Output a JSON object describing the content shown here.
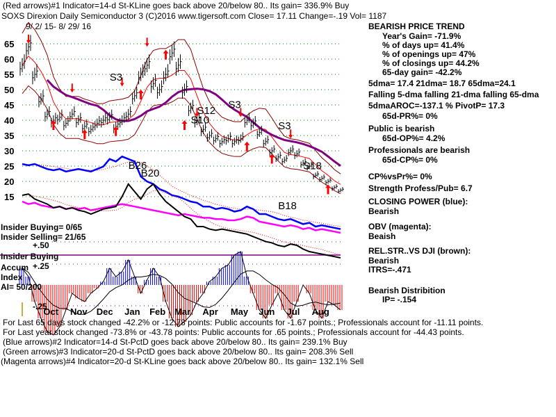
{
  "header": {
    "line1": "(Red arrows)#1 Indicator=14-d St-KLine goes back above 20/below 80.. Its gain= 336.9% Buy",
    "line2": "SOXS   Direxion Daily Semiconductor 3  (C)2016 www.tigersoft.com     Close=  17.11  Change=-.19 Vol= 1187",
    "date_range": "9/ 2/ 15- 8/ 29/ 16"
  },
  "right_panel": {
    "trend": "BEARISH PRICE TREND",
    "years_gain": "Year's Gain= -71.9%",
    "days_up": "% of days up= 41.4%",
    "openings_up": "% of openings up= 47%",
    "closings_up": "% of closings up= 44.2%",
    "gain_65d": "65-day gain= -42.2%",
    "dma": "5dma= 17.4 21dma= 18.7 65dma=24.1",
    "falling": "Falling 5-dma  falling 21-dma  falling 65-dma",
    "aroc": "5dmaAROC=-137.1 %  PivotP= 17.3",
    "pr": "65d-PR%= 0%",
    "public": "Public is bearish",
    "op": "65d-OP%= 4.2%",
    "pros": "Professionals are bearish",
    "cp": "65d-CP%= 0%",
    "cpvspr": "CP%vsPr%=  0%",
    "strength": "Strength Profess/Pub= 6.7",
    "closing_power": "CLOSING POWER (blue):",
    "closing_power_val": "Bearish",
    "obv": "OBV (magenta):",
    "obv_val": "Beaish",
    "relstr": "REL.STR..VS DJI (brown):",
    "relstr_val": "Bearish",
    "itrs": "ITRS=-.471",
    "distribution": "Bearish Distribition",
    "ip": "IP= -.154"
  },
  "left_labels": {
    "insider_buying": "Insider Buying= 0/65",
    "insider_selling": "Insider Selling= 21/65",
    "plus50": "+.50",
    "insider_buying2": "Insider Buying",
    "accum": "Accum",
    "plus25": "+.25",
    "index": "Index",
    "ai": "AI= 50/200",
    "minus25": "-.25"
  },
  "footer": [
    "For Last 65 days stock changed -42.2% or -12.78 points:  Public accounts for -1.67 points.;  Professionals account for -11.11 points.",
    "For Last year stock changed -73.8% or -43.78 points:  Public accounts for  .65 points.;  Professionals account for -44.43 points.",
    "(Blue arrows)#2 Indicator=14-d St-PctD goes back above 20/below 80.. Its gain= 239.1% Buy",
    "(Green arrows)#3 Indicator=20-d St-PctD goes back above 20/below 80.. Its gain= 208.3% Sell",
    "(Magenta arrows)#4 Indicator=20-d St-KLine goes back above 20/below 80.. Its gain= 132.1% Sell"
  ],
  "chart_data": {
    "type": "line",
    "title": "SOXS Direxion Daily Semiconductor 3",
    "x_unit": "week index (0 = 9/2/15, 51 = 8/29/16)",
    "yticks": [
      "65",
      "60",
      "55",
      "50",
      "45",
      "40",
      "35",
      "30",
      "25",
      "20",
      "15"
    ],
    "ylim": [
      15,
      65
    ],
    "months": [
      "Oct",
      "Nov",
      "Dec",
      "Jan",
      "Feb",
      "Mar",
      "Apr",
      "May",
      "Jun",
      "Jul",
      "Aug"
    ],
    "month_weeks": [
      4.5,
      8.8,
      13,
      17.5,
      21.5,
      25.5,
      30,
      34.5,
      39,
      43.5,
      47.5
    ],
    "close": [
      58,
      64,
      55,
      47,
      42,
      40,
      41,
      39,
      42,
      40,
      38,
      37,
      39,
      40,
      41,
      38,
      40,
      42,
      48,
      55,
      58,
      52,
      50,
      55,
      62,
      58,
      50,
      44,
      40,
      37,
      35,
      34,
      33,
      34,
      33,
      34,
      40,
      39,
      36,
      33,
      30,
      28,
      27,
      30,
      29,
      26,
      25,
      22,
      21,
      20,
      18,
      17.11
    ],
    "closing_power_blue": [
      80,
      79,
      80,
      78,
      76,
      75,
      76,
      74,
      75,
      76,
      75,
      74,
      76,
      78,
      84,
      82,
      86,
      84,
      82,
      70,
      66,
      64,
      60,
      58,
      55,
      54,
      52,
      50,
      49,
      46,
      46,
      44,
      45,
      44,
      42,
      43,
      46,
      44,
      40,
      40,
      38,
      36,
      35,
      36,
      34,
      32,
      33,
      30,
      31,
      30,
      29,
      28
    ],
    "obv_magenta": [
      50,
      48,
      49,
      47,
      46,
      45,
      46,
      44,
      45,
      44,
      45,
      43,
      44,
      45,
      46,
      47,
      48,
      47,
      46,
      45,
      44,
      43,
      42,
      41,
      40,
      39,
      40,
      39,
      38,
      37,
      37,
      36,
      36,
      35,
      35,
      36,
      38,
      37,
      34,
      33,
      32,
      31,
      30,
      31,
      30,
      28,
      29,
      27,
      28,
      27,
      26,
      25
    ],
    "relstr_black": [
      55,
      56,
      52,
      50,
      48,
      45,
      46,
      44,
      45,
      43,
      42,
      40,
      42,
      44,
      45,
      46,
      54,
      64,
      58,
      52,
      60,
      64,
      56,
      50,
      46,
      42,
      38,
      36,
      30,
      30,
      28,
      27,
      28,
      27,
      26,
      25,
      24,
      22,
      20,
      18,
      17,
      15,
      14,
      16,
      15,
      12,
      10,
      9,
      8,
      7,
      6,
      5
    ],
    "accum_index": [
      0.1,
      0.05,
      -0.1,
      -0.2,
      -0.28,
      -0.3,
      -0.25,
      -0.15,
      -0.05,
      -0.08,
      -0.1,
      -0.05,
      -0.02,
      0.02,
      0.1,
      0.05,
      0.08,
      0.15,
      0.05,
      -0.05,
      0.03,
      0.1,
      0.05,
      -0.1,
      -0.2,
      -0.25,
      -0.22,
      -0.18,
      -0.1,
      -0.05,
      0.02,
      0.05,
      0.1,
      0.12,
      0.18,
      0.2,
      0.05,
      -0.05,
      -0.15,
      -0.2,
      -0.12,
      -0.05,
      -0.15,
      -0.2,
      -0.1,
      0.0,
      -0.05,
      -0.15,
      -0.2,
      -0.1,
      -0.12,
      -0.15
    ],
    "red_arrows_up": [
      [
        5,
        40
      ],
      [
        10,
        37
      ],
      [
        15,
        38
      ],
      [
        19,
        50
      ],
      [
        23,
        63
      ],
      [
        26,
        40
      ],
      [
        36,
        33
      ],
      [
        40,
        29
      ],
      [
        49,
        19
      ]
    ],
    "red_arrows_down": [
      [
        1,
        68
      ],
      [
        8,
        52
      ],
      [
        16,
        54
      ],
      [
        20,
        67
      ],
      [
        28,
        44
      ],
      [
        35,
        44
      ],
      [
        43,
        37
      ]
    ],
    "signals": [
      {
        "label": "S3",
        "week": 14,
        "price": 53
      },
      {
        "label": "S12",
        "week": 28,
        "price": 42
      },
      {
        "label": "S10",
        "week": 27,
        "price": 39
      },
      {
        "label": "S3",
        "week": 33,
        "price": 44
      },
      {
        "label": "S3",
        "week": 41,
        "price": 37
      },
      {
        "label": "S18",
        "week": 45,
        "price": 24
      }
    ],
    "indicator_signals": [
      {
        "label": "B26",
        "week": 17,
        "value": 76
      },
      {
        "label": "B20",
        "week": 19,
        "value": 70
      },
      {
        "label": "B18",
        "week": 41,
        "value": 44
      }
    ]
  }
}
